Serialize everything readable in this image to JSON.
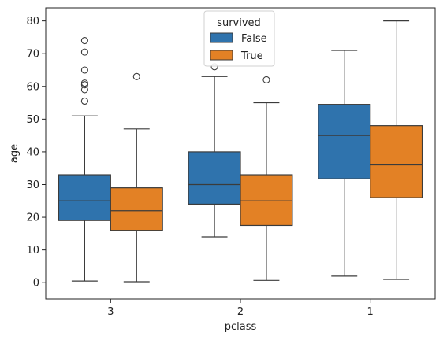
{
  "chart_data": {
    "type": "box",
    "xlabel": "pclass",
    "ylabel": "age",
    "categories": [
      "3",
      "2",
      "1"
    ],
    "ylim": [
      -5,
      84
    ],
    "yticks": [
      0,
      10,
      20,
      30,
      40,
      50,
      60,
      70,
      80
    ],
    "grid": false,
    "legend": {
      "title": "survived",
      "placement": "top-center"
    },
    "series": [
      {
        "name": "False",
        "color": "#2f73ad",
        "boxes": [
          {
            "category": "3",
            "whisker_low": 0.5,
            "q1": 19,
            "median": 25,
            "q3": 33,
            "whisker_high": 51,
            "outliers": [
              55.5,
              59,
              60.5,
              61,
              65,
              70.5,
              74
            ]
          },
          {
            "category": "2",
            "whisker_low": 14,
            "q1": 24,
            "median": 30,
            "q3": 40,
            "whisker_high": 63,
            "outliers": [
              66
            ]
          },
          {
            "category": "1",
            "whisker_low": 2,
            "q1": 31.75,
            "median": 45,
            "q3": 54.5,
            "whisker_high": 71,
            "outliers": []
          }
        ]
      },
      {
        "name": "True",
        "color": "#e38125",
        "boxes": [
          {
            "category": "3",
            "whisker_low": 0.3,
            "q1": 16,
            "median": 22,
            "q3": 29,
            "whisker_high": 47,
            "outliers": [
              63
            ]
          },
          {
            "category": "2",
            "whisker_low": 0.7,
            "q1": 17.5,
            "median": 25,
            "q3": 33,
            "whisker_high": 55,
            "outliers": [
              62
            ]
          },
          {
            "category": "1",
            "whisker_low": 1,
            "q1": 26,
            "median": 36,
            "q3": 48,
            "whisker_high": 80,
            "outliers": []
          }
        ]
      }
    ]
  }
}
